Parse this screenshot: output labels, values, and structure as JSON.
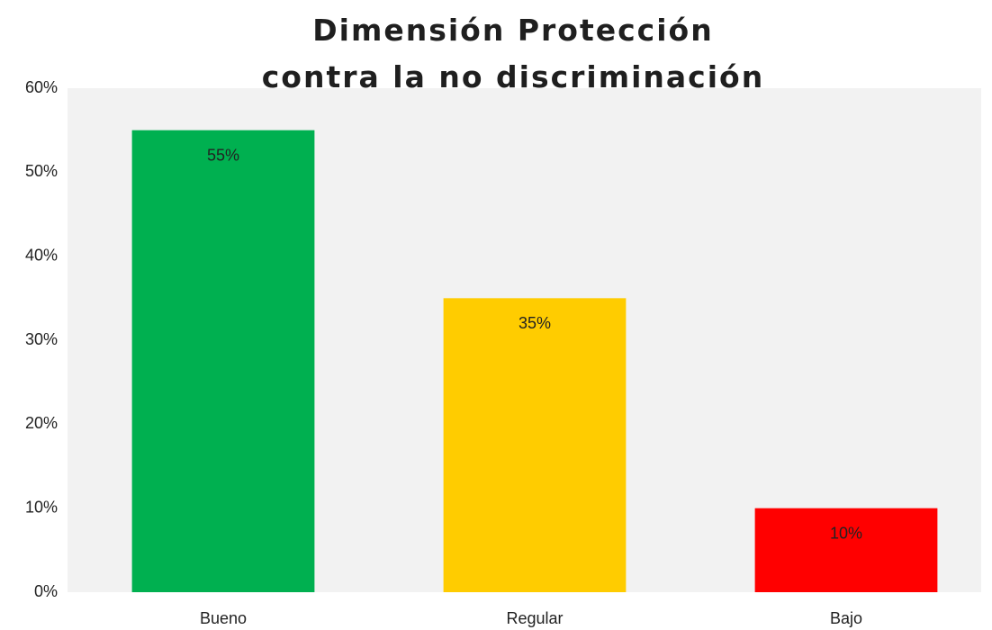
{
  "chart_data": {
    "type": "bar",
    "title": "Dimensión Protección contra la no discriminación",
    "categories": [
      "Bueno",
      "Regular",
      "Bajo"
    ],
    "values": [
      55,
      35,
      10
    ],
    "value_labels": [
      "55%",
      "35%",
      "10%"
    ],
    "colors": [
      "#00b050",
      "#ffcc00",
      "#ff0000"
    ],
    "ylim": [
      0,
      60
    ],
    "yticks": [
      {
        "value": 0,
        "label": "0%"
      },
      {
        "value": 10,
        "label": "10%"
      },
      {
        "value": 20,
        "label": "20%"
      },
      {
        "value": 30,
        "label": "30%"
      },
      {
        "value": 40,
        "label": "40%"
      },
      {
        "value": 50,
        "label": "50%"
      },
      {
        "value": 60,
        "label": "60%"
      }
    ],
    "grid": false
  }
}
